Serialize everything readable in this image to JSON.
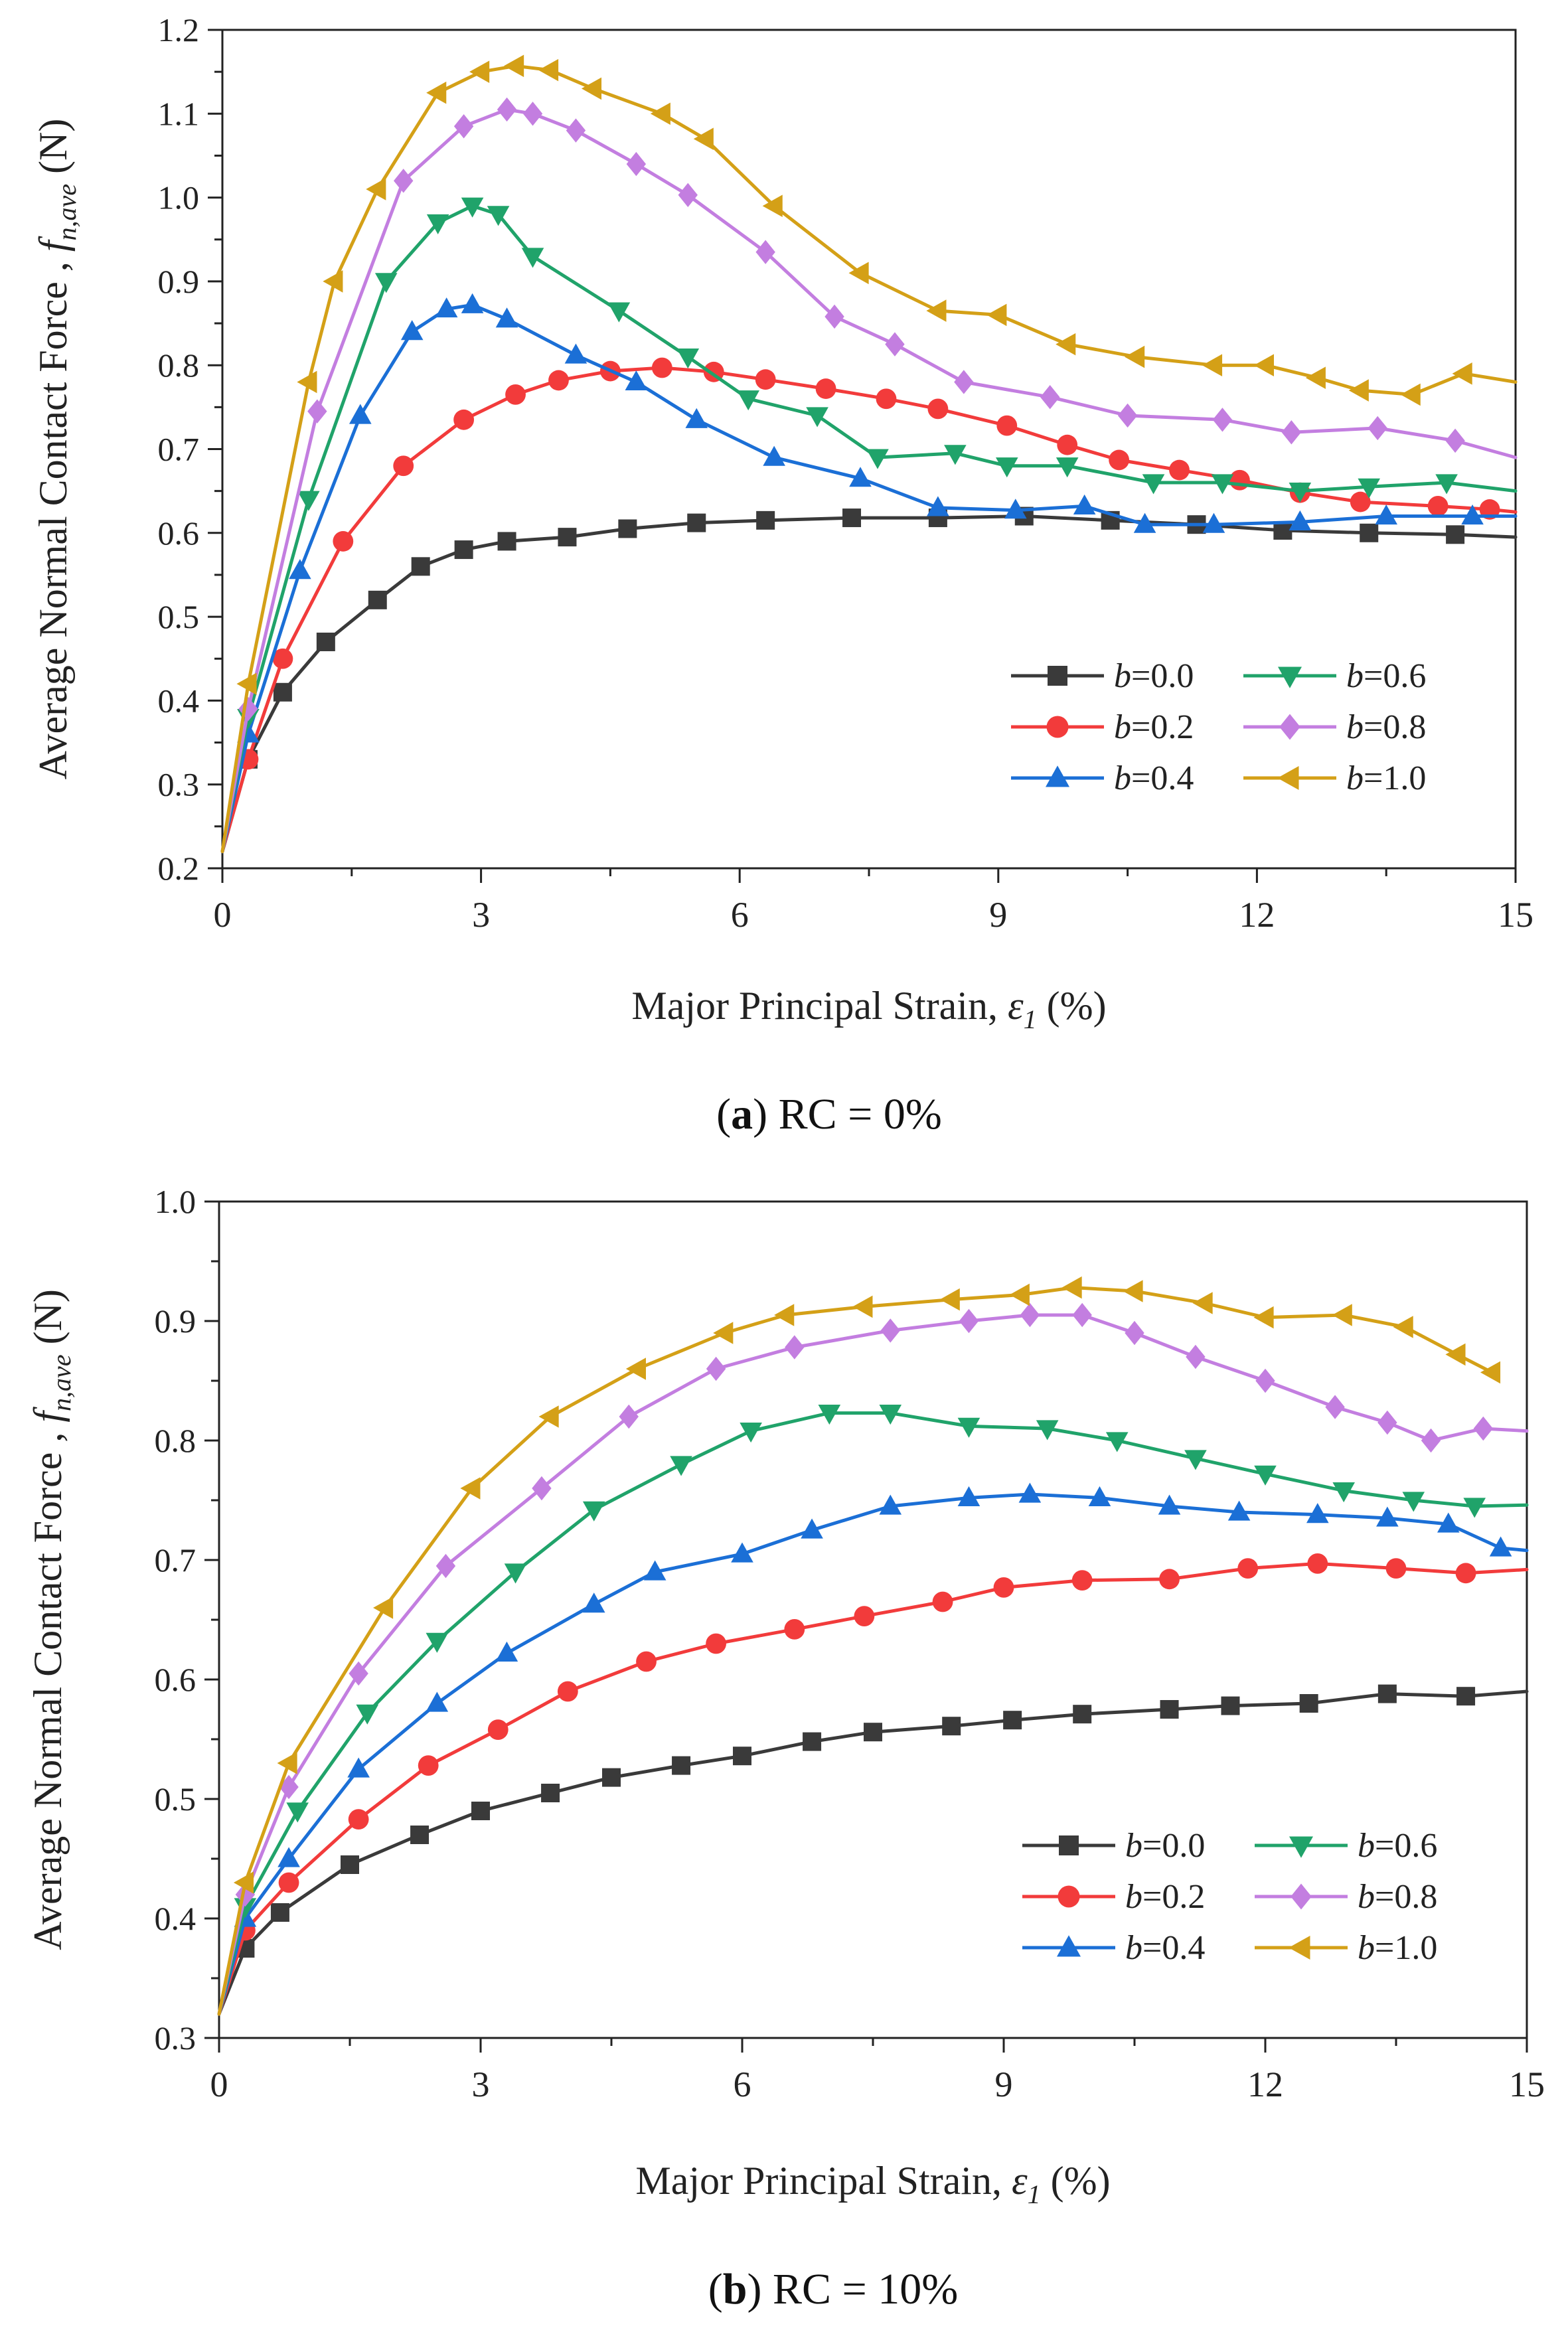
{
  "colors": {
    "b0.0": "#3a3a3a",
    "b0.2": "#f23b3b",
    "b0.4": "#1b6fd6",
    "b0.6": "#20a36a",
    "b0.8": "#c37ee0",
    "b1.0": "#d4a017"
  },
  "chart_data": [
    {
      "id": "a",
      "type": "line",
      "caption_bold": "a",
      "caption_rest": " RC = 0%",
      "xlabel_prefix": "Major Principal Strain, ",
      "xlabel_sym": "ε",
      "xlabel_sub": "1",
      "xlabel_suffix": " (%)",
      "ylabel_prefix": "Average Normal Contact Force , ",
      "ylabel_sym": "f",
      "ylabel_sub": "n,ave",
      "ylabel_suffix": " (N)",
      "xlim": [
        0,
        15
      ],
      "ylim": [
        0.2,
        1.2
      ],
      "xticks": [
        "0",
        "3",
        "6",
        "9",
        "12",
        "15"
      ],
      "yticks": [
        "0.2",
        "0.3",
        "0.4",
        "0.5",
        "0.6",
        "0.7",
        "0.8",
        "0.9",
        "1.0",
        "1.1",
        "1.2"
      ],
      "legend_position": "lower-right",
      "series": [
        {
          "name": "b=0.0",
          "prefix": "b",
          "value": "=0.0",
          "marker": "square",
          "color_key": "b0.0",
          "x": [
            0,
            0.3,
            0.7,
            1.2,
            1.8,
            2.3,
            2.8,
            3.3,
            4,
            4.7,
            5.5,
            6.3,
            7.3,
            8.3,
            9.3,
            10.3,
            11.3,
            12.3,
            13.3,
            14.3,
            15
          ],
          "y": [
            0.22,
            0.33,
            0.41,
            0.47,
            0.52,
            0.56,
            0.58,
            0.59,
            0.595,
            0.605,
            0.612,
            0.615,
            0.618,
            0.618,
            0.62,
            0.615,
            0.61,
            0.603,
            0.6,
            0.598,
            0.595
          ]
        },
        {
          "name": "b=0.2",
          "prefix": "b",
          "value": "=0.2",
          "marker": "circle",
          "color_key": "b0.2",
          "x": [
            0,
            0.3,
            0.7,
            1.4,
            2.1,
            2.8,
            3.4,
            3.9,
            4.5,
            5.1,
            5.7,
            6.3,
            7,
            7.7,
            8.3,
            9.1,
            9.8,
            10.4,
            11.1,
            11.8,
            12.5,
            13.2,
            14.1,
            14.7,
            15
          ],
          "y": [
            0.22,
            0.33,
            0.45,
            0.59,
            0.68,
            0.735,
            0.765,
            0.782,
            0.793,
            0.797,
            0.792,
            0.783,
            0.772,
            0.76,
            0.748,
            0.728,
            0.705,
            0.687,
            0.675,
            0.663,
            0.648,
            0.637,
            0.632,
            0.628,
            0.625
          ]
        },
        {
          "name": "b=0.4",
          "prefix": "b",
          "value": "=0.4",
          "marker": "triangle-up",
          "color_key": "b0.4",
          "x": [
            0,
            0.3,
            0.9,
            1.6,
            2.2,
            2.6,
            2.9,
            3.3,
            4.1,
            4.8,
            5.5,
            6.4,
            7.4,
            8.3,
            9.2,
            10,
            10.7,
            11.5,
            12.5,
            13.5,
            14.5,
            15
          ],
          "y": [
            0.22,
            0.36,
            0.555,
            0.74,
            0.84,
            0.867,
            0.872,
            0.855,
            0.812,
            0.78,
            0.735,
            0.69,
            0.665,
            0.63,
            0.627,
            0.632,
            0.61,
            0.61,
            0.613,
            0.62,
            0.62,
            0.62
          ]
        },
        {
          "name": "b=0.6",
          "prefix": "b",
          "value": "=0.6",
          "marker": "triangle-down",
          "color_key": "b0.6",
          "x": [
            0,
            0.3,
            1,
            1.9,
            2.5,
            2.9,
            3.2,
            3.6,
            4.6,
            5.4,
            6.1,
            6.9,
            7.6,
            8.5,
            9.1,
            9.8,
            10.8,
            11.6,
            12.5,
            13.3,
            14.2,
            15
          ],
          "y": [
            0.22,
            0.38,
            0.64,
            0.9,
            0.97,
            0.99,
            0.98,
            0.93,
            0.865,
            0.81,
            0.76,
            0.74,
            0.69,
            0.695,
            0.68,
            0.68,
            0.66,
            0.66,
            0.65,
            0.655,
            0.66,
            0.65
          ]
        },
        {
          "name": "b=0.8",
          "prefix": "b",
          "value": "=0.8",
          "marker": "diamond",
          "color_key": "b0.8",
          "x": [
            0,
            0.3,
            1.1,
            2.1,
            2.8,
            3.3,
            3.6,
            4.1,
            4.8,
            5.4,
            6.3,
            7.1,
            7.8,
            8.6,
            9.6,
            10.5,
            11.6,
            12.4,
            13.4,
            14.3,
            15
          ],
          "y": [
            0.22,
            0.39,
            0.745,
            1.02,
            1.085,
            1.105,
            1.1,
            1.08,
            1.04,
            1.003,
            0.935,
            0.858,
            0.825,
            0.78,
            0.762,
            0.74,
            0.735,
            0.72,
            0.725,
            0.71,
            0.69
          ]
        },
        {
          "name": "b=1.0",
          "prefix": "b",
          "value": "=1.0",
          "marker": "triangle-left",
          "color_key": "b1.0",
          "x": [
            0,
            0.3,
            1,
            1.3,
            1.8,
            2.5,
            3,
            3.4,
            3.8,
            4.3,
            5.1,
            5.6,
            6.4,
            7.4,
            8.3,
            9,
            9.8,
            10.6,
            11.5,
            12.1,
            12.7,
            13.2,
            13.8,
            14.4,
            15
          ],
          "y": [
            0.22,
            0.42,
            0.78,
            0.9,
            1.01,
            1.125,
            1.15,
            1.157,
            1.152,
            1.13,
            1.1,
            1.07,
            0.99,
            0.91,
            0.865,
            0.86,
            0.825,
            0.81,
            0.8,
            0.8,
            0.785,
            0.77,
            0.765,
            0.79,
            0.78
          ]
        }
      ]
    },
    {
      "id": "b",
      "type": "line",
      "caption_bold": "b",
      "caption_rest": " RC = 10%",
      "xlabel_prefix": "Major Principal Strain, ",
      "xlabel_sym": "ε",
      "xlabel_sub": "1",
      "xlabel_suffix": " (%)",
      "ylabel_prefix": "Average Normal Contact Force , ",
      "ylabel_sym": "f",
      "ylabel_sub": "n,ave",
      "ylabel_suffix": " (N)",
      "xlim": [
        0,
        15
      ],
      "ylim": [
        0.3,
        1.0
      ],
      "xticks": [
        "0",
        "3",
        "6",
        "9",
        "12",
        "15"
      ],
      "yticks": [
        "0.3",
        "0.4",
        "0.5",
        "0.6",
        "0.7",
        "0.8",
        "0.9",
        "1.0"
      ],
      "legend_position": "lower-right",
      "series": [
        {
          "name": "b=0.0",
          "prefix": "b",
          "value": "=0.0",
          "marker": "square",
          "color_key": "b0.0",
          "x": [
            0,
            0.3,
            0.7,
            1.5,
            2.3,
            3,
            3.8,
            4.5,
            5.3,
            6,
            6.8,
            7.5,
            8.4,
            9.1,
            9.9,
            10.9,
            11.6,
            12.5,
            13.4,
            14.3,
            15
          ],
          "y": [
            0.32,
            0.375,
            0.405,
            0.445,
            0.47,
            0.49,
            0.505,
            0.518,
            0.528,
            0.536,
            0.548,
            0.556,
            0.561,
            0.566,
            0.571,
            0.575,
            0.578,
            0.58,
            0.588,
            0.586,
            0.59
          ]
        },
        {
          "name": "b=0.2",
          "prefix": "b",
          "value": "=0.2",
          "marker": "circle",
          "color_key": "b0.2",
          "x": [
            0,
            0.3,
            0.8,
            1.6,
            2.4,
            3.2,
            4,
            4.9,
            5.7,
            6.6,
            7.4,
            8.3,
            9,
            9.9,
            10.9,
            11.8,
            12.6,
            13.5,
            14.3,
            15
          ],
          "y": [
            0.32,
            0.39,
            0.43,
            0.483,
            0.528,
            0.558,
            0.59,
            0.615,
            0.63,
            0.642,
            0.653,
            0.665,
            0.677,
            0.683,
            0.684,
            0.693,
            0.697,
            0.693,
            0.689,
            0.692
          ]
        },
        {
          "name": "b=0.4",
          "prefix": "b",
          "value": "=0.4",
          "marker": "triangle-up",
          "color_key": "b0.4",
          "x": [
            0,
            0.3,
            0.8,
            1.6,
            2.5,
            3.3,
            4.3,
            5,
            6,
            6.8,
            7.7,
            8.6,
            9.3,
            10.1,
            10.9,
            11.7,
            12.6,
            13.4,
            14.1,
            14.7,
            15
          ],
          "y": [
            0.32,
            0.4,
            0.45,
            0.525,
            0.58,
            0.622,
            0.663,
            0.69,
            0.705,
            0.725,
            0.745,
            0.752,
            0.755,
            0.752,
            0.745,
            0.74,
            0.738,
            0.735,
            0.73,
            0.71,
            0.708
          ]
        },
        {
          "name": "b=0.6",
          "prefix": "b",
          "value": "=0.6",
          "marker": "triangle-down",
          "color_key": "b0.6",
          "x": [
            0,
            0.3,
            0.9,
            1.7,
            2.5,
            3.4,
            4.3,
            5.3,
            6.1,
            7,
            7.7,
            8.6,
            9.5,
            10.3,
            11.2,
            12,
            12.9,
            13.7,
            14.4,
            15
          ],
          "y": [
            0.32,
            0.41,
            0.49,
            0.572,
            0.632,
            0.69,
            0.742,
            0.78,
            0.808,
            0.823,
            0.823,
            0.812,
            0.81,
            0.8,
            0.785,
            0.772,
            0.758,
            0.75,
            0.745,
            0.746
          ]
        },
        {
          "name": "b=0.8",
          "prefix": "b",
          "value": "=0.8",
          "marker": "diamond",
          "color_key": "b0.8",
          "x": [
            0,
            0.3,
            0.8,
            1.6,
            2.6,
            3.7,
            4.7,
            5.7,
            6.6,
            7.7,
            8.6,
            9.3,
            9.9,
            10.5,
            11.2,
            12,
            12.8,
            13.4,
            13.9,
            14.5,
            15
          ],
          "y": [
            0.32,
            0.42,
            0.51,
            0.605,
            0.695,
            0.76,
            0.82,
            0.86,
            0.878,
            0.892,
            0.9,
            0.905,
            0.905,
            0.89,
            0.87,
            0.85,
            0.828,
            0.815,
            0.8,
            0.81,
            0.808
          ]
        },
        {
          "name": "b=1.0",
          "prefix": "b",
          "value": "=1.0",
          "marker": "triangle-left",
          "color_key": "b1.0",
          "x": [
            0,
            0.3,
            0.8,
            1.9,
            2.9,
            3.8,
            4.8,
            5.8,
            6.5,
            7.4,
            8.4,
            9.2,
            9.8,
            10.5,
            11.3,
            12,
            12.9,
            13.6,
            14.2,
            14.6
          ],
          "y": [
            0.32,
            0.43,
            0.53,
            0.66,
            0.76,
            0.82,
            0.86,
            0.89,
            0.905,
            0.912,
            0.918,
            0.922,
            0.928,
            0.925,
            0.915,
            0.903,
            0.905,
            0.895,
            0.872,
            0.857
          ]
        }
      ]
    }
  ]
}
